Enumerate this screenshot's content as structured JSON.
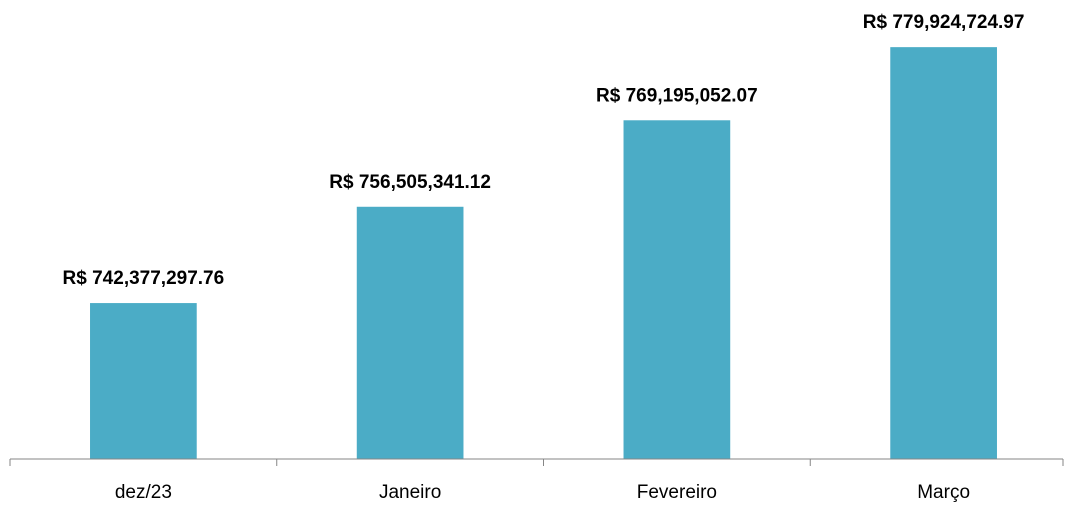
{
  "chart_data": {
    "type": "bar",
    "categories": [
      "dez/23",
      "Janeiro",
      "Fevereiro",
      "Março"
    ],
    "values": [
      742377297.76,
      756505341.12,
      769195052.07,
      779924724.97
    ],
    "value_labels": [
      "R$ 742,377,297.76",
      "R$ 756,505,341.12",
      "R$ 769,195,052.07",
      "R$ 779,924,724.97"
    ],
    "color": "#4bacc6",
    "ylim": [
      719500000,
      782000000
    ]
  }
}
